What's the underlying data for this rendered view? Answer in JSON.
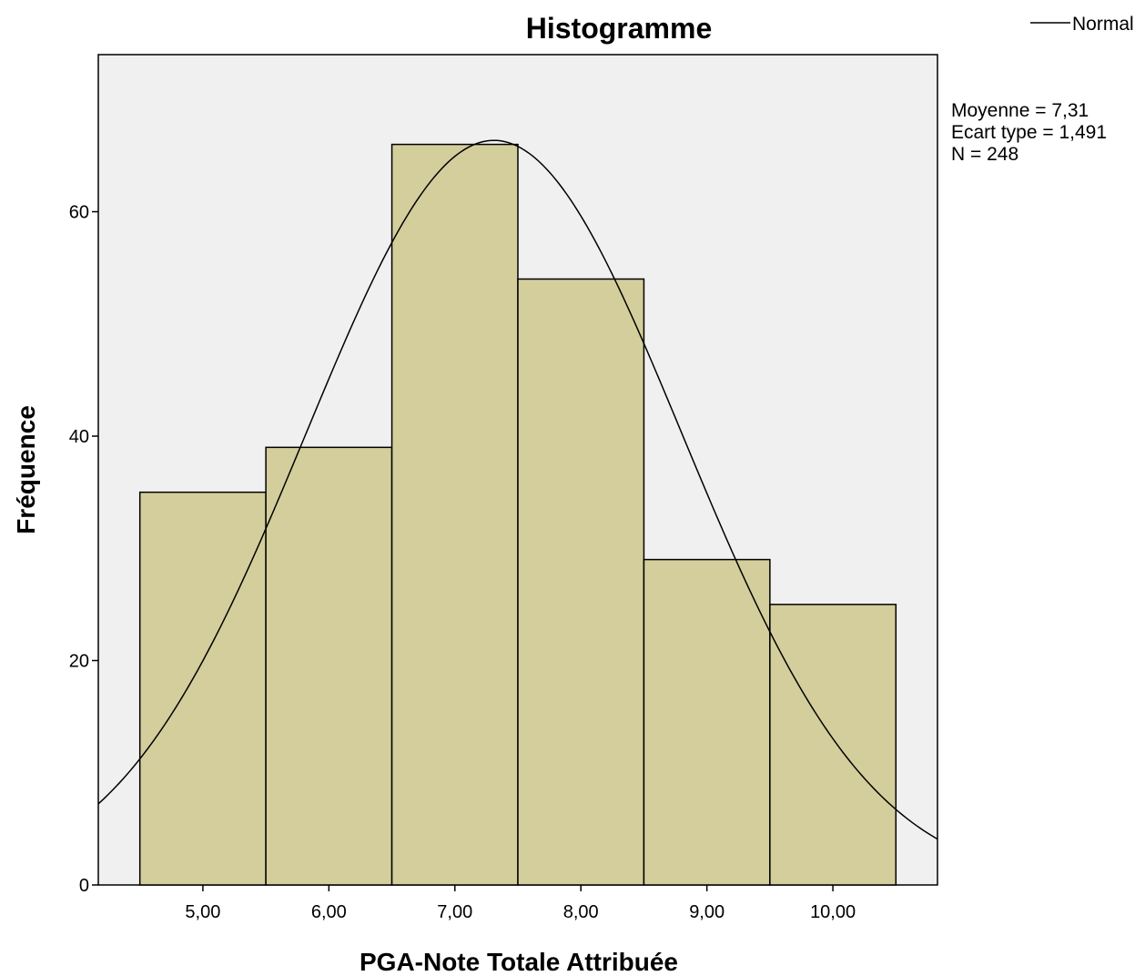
{
  "chart_data": {
    "type": "bar",
    "subtype": "histogram",
    "title": "Histogramme",
    "xlabel": "PGA-Note Totale Attribuée",
    "ylabel": "Fréquence",
    "bin_width": 1,
    "bin_centers": [
      5,
      6,
      7,
      8,
      9,
      10
    ],
    "values": [
      35,
      39,
      66,
      54,
      29,
      25
    ],
    "x_ticks": [
      5,
      6,
      7,
      8,
      9,
      10
    ],
    "x_tick_labels": [
      "5,00",
      "6,00",
      "7,00",
      "8,00",
      "9,00",
      "10,00"
    ],
    "xlim": [
      4.17,
      10.83
    ],
    "y_ticks": [
      0,
      20,
      40,
      60
    ],
    "y_tick_labels": [
      "0",
      "20",
      "40",
      "60"
    ],
    "ylim": [
      0,
      74
    ],
    "normal_curve": {
      "mean": 7.31,
      "sd": 1.491,
      "n": 248
    },
    "stats_text": [
      "Moyenne = 7,31",
      "Ecart type = 1,491",
      "N = 248"
    ],
    "legend": {
      "entries": [
        "Normal"
      ],
      "placement": "top-right"
    },
    "grid": false,
    "colors": {
      "bar_fill": "#d3ce9c",
      "plot_bg": "#f0f0f0",
      "edge": "#000000"
    }
  }
}
